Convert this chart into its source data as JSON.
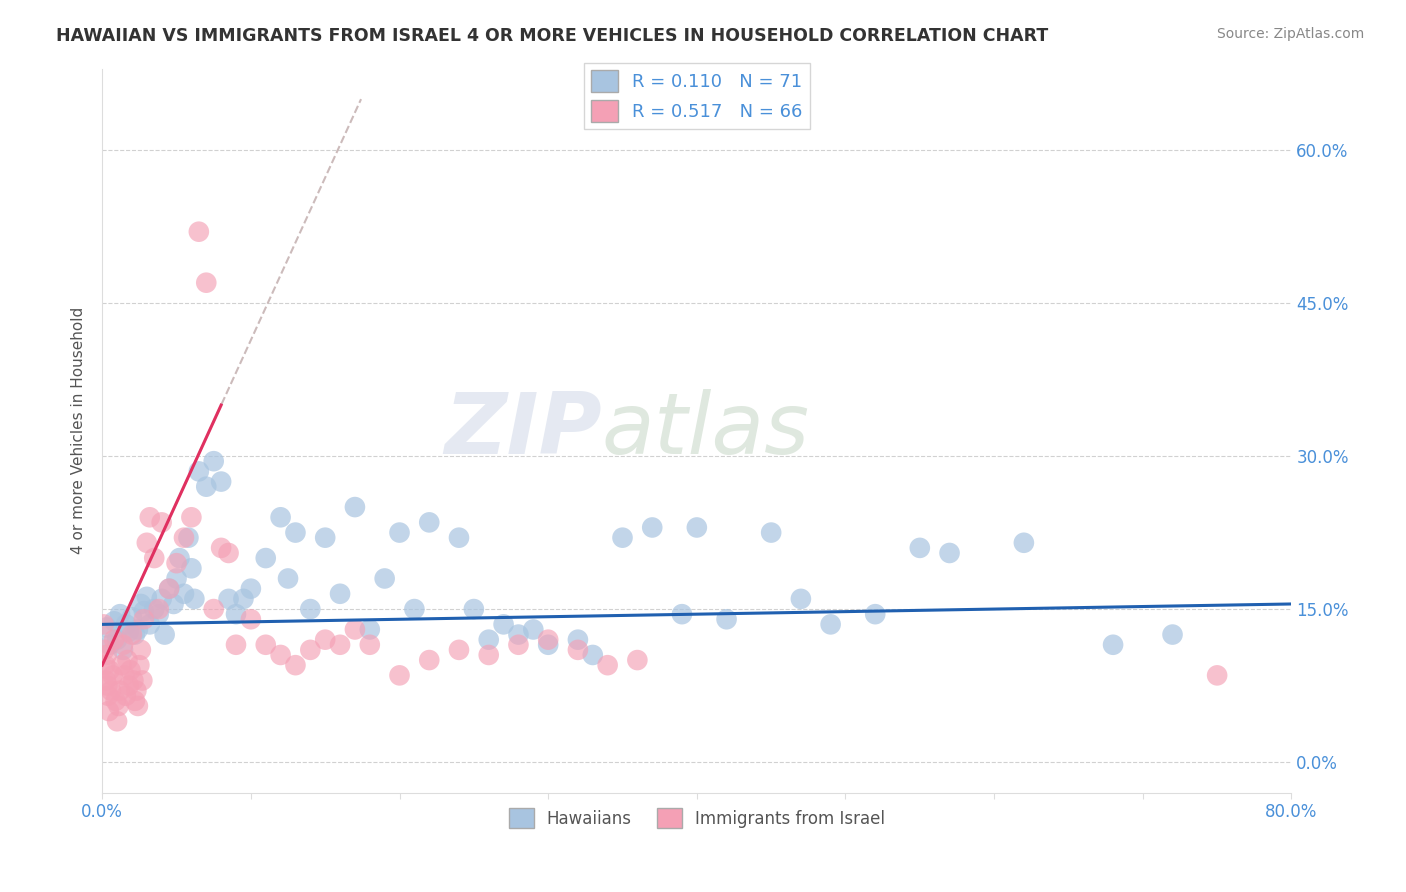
{
  "title": "HAWAIIAN VS IMMIGRANTS FROM ISRAEL 4 OR MORE VEHICLES IN HOUSEHOLD CORRELATION CHART",
  "source": "Source: ZipAtlas.com",
  "ylabel": "4 or more Vehicles in Household",
  "xlim": [
    0.0,
    80.0
  ],
  "ylim": [
    -3.0,
    68.0
  ],
  "xticks": [
    0.0,
    10.0,
    20.0,
    30.0,
    40.0,
    50.0,
    60.0,
    70.0,
    80.0
  ],
  "yticks": [
    0.0,
    15.0,
    30.0,
    45.0,
    60.0
  ],
  "grid_color": "#cccccc",
  "background_color": "#ffffff",
  "blue_color": "#a8c4e0",
  "pink_color": "#f4a0b5",
  "blue_line_color": "#2060b0",
  "pink_line_color": "#e03060",
  "dash_line_color": "#ccbbbb",
  "R_blue": 0.11,
  "N_blue": 71,
  "R_pink": 0.517,
  "N_pink": 66,
  "watermark_zip": "ZIP",
  "watermark_atlas": "atlas",
  "legend_labels": [
    "Hawaiians",
    "Immigrants from Israel"
  ],
  "blue_scatter": [
    [
      0.3,
      13.2
    ],
    [
      0.5,
      11.5
    ],
    [
      0.8,
      13.8
    ],
    [
      1.0,
      12.0
    ],
    [
      1.2,
      14.5
    ],
    [
      1.4,
      11.0
    ],
    [
      1.6,
      13.5
    ],
    [
      1.8,
      12.8
    ],
    [
      2.0,
      14.2
    ],
    [
      2.2,
      12.5
    ],
    [
      2.4,
      13.0
    ],
    [
      2.6,
      15.5
    ],
    [
      2.8,
      14.8
    ],
    [
      3.0,
      16.2
    ],
    [
      3.2,
      13.5
    ],
    [
      3.5,
      15.0
    ],
    [
      3.8,
      14.5
    ],
    [
      4.0,
      16.0
    ],
    [
      4.2,
      12.5
    ],
    [
      4.5,
      17.0
    ],
    [
      4.8,
      15.5
    ],
    [
      5.0,
      18.0
    ],
    [
      5.2,
      20.0
    ],
    [
      5.5,
      16.5
    ],
    [
      5.8,
      22.0
    ],
    [
      6.0,
      19.0
    ],
    [
      6.2,
      16.0
    ],
    [
      6.5,
      28.5
    ],
    [
      7.0,
      27.0
    ],
    [
      7.5,
      29.5
    ],
    [
      8.0,
      27.5
    ],
    [
      8.5,
      16.0
    ],
    [
      9.0,
      14.5
    ],
    [
      9.5,
      16.0
    ],
    [
      10.0,
      17.0
    ],
    [
      11.0,
      20.0
    ],
    [
      12.0,
      24.0
    ],
    [
      12.5,
      18.0
    ],
    [
      13.0,
      22.5
    ],
    [
      14.0,
      15.0
    ],
    [
      15.0,
      22.0
    ],
    [
      16.0,
      16.5
    ],
    [
      17.0,
      25.0
    ],
    [
      18.0,
      13.0
    ],
    [
      19.0,
      18.0
    ],
    [
      20.0,
      22.5
    ],
    [
      21.0,
      15.0
    ],
    [
      22.0,
      23.5
    ],
    [
      24.0,
      22.0
    ],
    [
      25.0,
      15.0
    ],
    [
      26.0,
      12.0
    ],
    [
      27.0,
      13.5
    ],
    [
      28.0,
      12.5
    ],
    [
      29.0,
      13.0
    ],
    [
      30.0,
      11.5
    ],
    [
      32.0,
      12.0
    ],
    [
      33.0,
      10.5
    ],
    [
      35.0,
      22.0
    ],
    [
      37.0,
      23.0
    ],
    [
      39.0,
      14.5
    ],
    [
      40.0,
      23.0
    ],
    [
      42.0,
      14.0
    ],
    [
      45.0,
      22.5
    ],
    [
      47.0,
      16.0
    ],
    [
      49.0,
      13.5
    ],
    [
      52.0,
      14.5
    ],
    [
      55.0,
      21.0
    ],
    [
      57.0,
      20.5
    ],
    [
      62.0,
      21.5
    ],
    [
      68.0,
      11.5
    ],
    [
      72.0,
      12.5
    ]
  ],
  "pink_scatter": [
    [
      0.1,
      13.5
    ],
    [
      0.15,
      11.0
    ],
    [
      0.2,
      9.5
    ],
    [
      0.25,
      8.0
    ],
    [
      0.3,
      10.5
    ],
    [
      0.35,
      7.5
    ],
    [
      0.4,
      6.5
    ],
    [
      0.45,
      5.0
    ],
    [
      0.5,
      9.0
    ],
    [
      0.6,
      7.0
    ],
    [
      0.7,
      8.5
    ],
    [
      0.8,
      12.0
    ],
    [
      0.9,
      6.0
    ],
    [
      1.0,
      4.0
    ],
    [
      1.1,
      5.5
    ],
    [
      1.2,
      7.0
    ],
    [
      1.3,
      9.5
    ],
    [
      1.4,
      11.5
    ],
    [
      1.5,
      8.5
    ],
    [
      1.6,
      6.5
    ],
    [
      1.7,
      10.0
    ],
    [
      1.8,
      7.5
    ],
    [
      1.9,
      9.0
    ],
    [
      2.0,
      12.5
    ],
    [
      2.1,
      8.0
    ],
    [
      2.2,
      6.0
    ],
    [
      2.3,
      7.0
    ],
    [
      2.4,
      5.5
    ],
    [
      2.5,
      9.5
    ],
    [
      2.6,
      11.0
    ],
    [
      2.7,
      8.0
    ],
    [
      2.8,
      14.0
    ],
    [
      3.0,
      21.5
    ],
    [
      3.2,
      24.0
    ],
    [
      3.5,
      20.0
    ],
    [
      3.8,
      15.0
    ],
    [
      4.0,
      23.5
    ],
    [
      4.5,
      17.0
    ],
    [
      5.0,
      19.5
    ],
    [
      5.5,
      22.0
    ],
    [
      6.0,
      24.0
    ],
    [
      6.5,
      52.0
    ],
    [
      7.0,
      47.0
    ],
    [
      7.5,
      15.0
    ],
    [
      8.0,
      21.0
    ],
    [
      8.5,
      20.5
    ],
    [
      9.0,
      11.5
    ],
    [
      10.0,
      14.0
    ],
    [
      11.0,
      11.5
    ],
    [
      12.0,
      10.5
    ],
    [
      13.0,
      9.5
    ],
    [
      14.0,
      11.0
    ],
    [
      15.0,
      12.0
    ],
    [
      16.0,
      11.5
    ],
    [
      17.0,
      13.0
    ],
    [
      18.0,
      11.5
    ],
    [
      20.0,
      8.5
    ],
    [
      22.0,
      10.0
    ],
    [
      24.0,
      11.0
    ],
    [
      26.0,
      10.5
    ],
    [
      28.0,
      11.5
    ],
    [
      30.0,
      12.0
    ],
    [
      32.0,
      11.0
    ],
    [
      34.0,
      9.5
    ],
    [
      36.0,
      10.0
    ],
    [
      75.0,
      8.5
    ]
  ],
  "pink_trend_x0": 0.0,
  "pink_trend_y0": 9.5,
  "pink_trend_x1": 8.0,
  "pink_trend_y1": 35.0,
  "blue_trend_x0": 0.0,
  "blue_trend_y0": 13.5,
  "blue_trend_x1": 80.0,
  "blue_trend_y1": 15.5
}
